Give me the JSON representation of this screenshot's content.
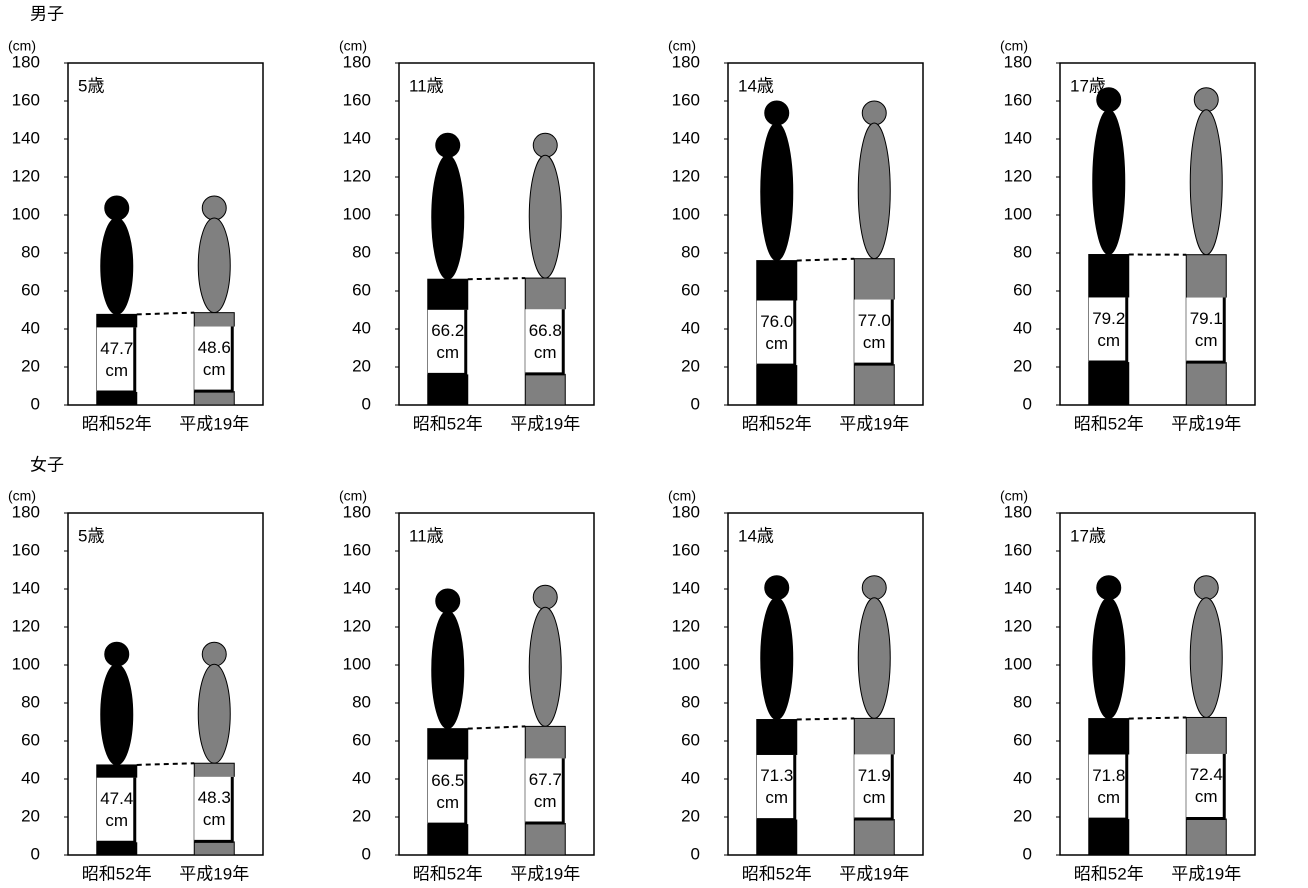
{
  "groups": [
    "男子",
    "女子"
  ],
  "chart_data": [
    {
      "type": "bar",
      "title": "5歳",
      "y_label": "(cm)",
      "categories": [
        "昭和52年",
        "平成19年"
      ],
      "values": [
        47.7,
        48.6
      ],
      "value_labels": [
        "47.7 cm",
        "48.6 cm"
      ],
      "heights": [
        110,
        110
      ],
      "colors": [
        "#000000",
        "#808080"
      ],
      "ylim": [
        0,
        180
      ],
      "yticks": [
        0,
        20,
        40,
        60,
        80,
        100,
        120,
        140,
        160,
        180
      ]
    },
    {
      "type": "bar",
      "title": "11歳",
      "y_label": "(cm)",
      "categories": [
        "昭和52年",
        "平成19年"
      ],
      "values": [
        66.2,
        66.8
      ],
      "value_labels": [
        "66.2 cm",
        "66.8 cm"
      ],
      "heights": [
        143,
        143
      ],
      "colors": [
        "#000000",
        "#808080"
      ],
      "ylim": [
        0,
        180
      ],
      "yticks": [
        0,
        20,
        40,
        60,
        80,
        100,
        120,
        140,
        160,
        180
      ]
    },
    {
      "type": "bar",
      "title": "14歳",
      "y_label": "(cm)",
      "categories": [
        "昭和52年",
        "平成19年"
      ],
      "values": [
        76.0,
        77.0
      ],
      "value_labels": [
        "76.0 cm",
        "77.0 cm"
      ],
      "heights": [
        160,
        160
      ],
      "colors": [
        "#000000",
        "#808080"
      ],
      "ylim": [
        0,
        180
      ],
      "yticks": [
        0,
        20,
        40,
        60,
        80,
        100,
        120,
        140,
        160,
        180
      ]
    },
    {
      "type": "bar",
      "title": "17歳",
      "y_label": "(cm)",
      "categories": [
        "昭和52年",
        "平成19年"
      ],
      "values": [
        79.2,
        79.1
      ],
      "value_labels": [
        "79.2 cm",
        "79.1 cm"
      ],
      "heights": [
        167,
        167
      ],
      "colors": [
        "#000000",
        "#808080"
      ],
      "ylim": [
        0,
        180
      ],
      "yticks": [
        0,
        20,
        40,
        60,
        80,
        100,
        120,
        140,
        160,
        180
      ]
    },
    {
      "type": "bar",
      "title": "5歳",
      "y_label": "(cm)",
      "categories": [
        "昭和52年",
        "平成19年"
      ],
      "values": [
        47.4,
        48.3
      ],
      "value_labels": [
        "47.4 cm",
        "48.3 cm"
      ],
      "heights": [
        112,
        112
      ],
      "colors": [
        "#000000",
        "#808080"
      ],
      "ylim": [
        0,
        180
      ],
      "yticks": [
        0,
        20,
        40,
        60,
        80,
        100,
        120,
        140,
        160,
        180
      ]
    },
    {
      "type": "bar",
      "title": "11歳",
      "y_label": "(cm)",
      "categories": [
        "昭和52年",
        "平成19年"
      ],
      "values": [
        66.5,
        67.7
      ],
      "value_labels": [
        "66.5 cm",
        "67.7 cm"
      ],
      "heights": [
        140,
        142
      ],
      "colors": [
        "#000000",
        "#808080"
      ],
      "ylim": [
        0,
        180
      ],
      "yticks": [
        0,
        20,
        40,
        60,
        80,
        100,
        120,
        140,
        160,
        180
      ]
    },
    {
      "type": "bar",
      "title": "14歳",
      "y_label": "(cm)",
      "categories": [
        "昭和52年",
        "平成19年"
      ],
      "values": [
        71.3,
        71.9
      ],
      "value_labels": [
        "71.3 cm",
        "71.9 cm"
      ],
      "heights": [
        147,
        147
      ],
      "colors": [
        "#000000",
        "#808080"
      ],
      "ylim": [
        0,
        180
      ],
      "yticks": [
        0,
        20,
        40,
        60,
        80,
        100,
        120,
        140,
        160,
        180
      ]
    },
    {
      "type": "bar",
      "title": "17歳",
      "y_label": "(cm)",
      "categories": [
        "昭和52年",
        "平成19年"
      ],
      "values": [
        71.8,
        72.4
      ],
      "value_labels": [
        "71.8 cm",
        "72.4 cm"
      ],
      "heights": [
        147,
        147
      ],
      "colors": [
        "#000000",
        "#808080"
      ],
      "ylim": [
        0,
        180
      ],
      "yticks": [
        0,
        20,
        40,
        60,
        80,
        100,
        120,
        140,
        160,
        180
      ]
    }
  ]
}
